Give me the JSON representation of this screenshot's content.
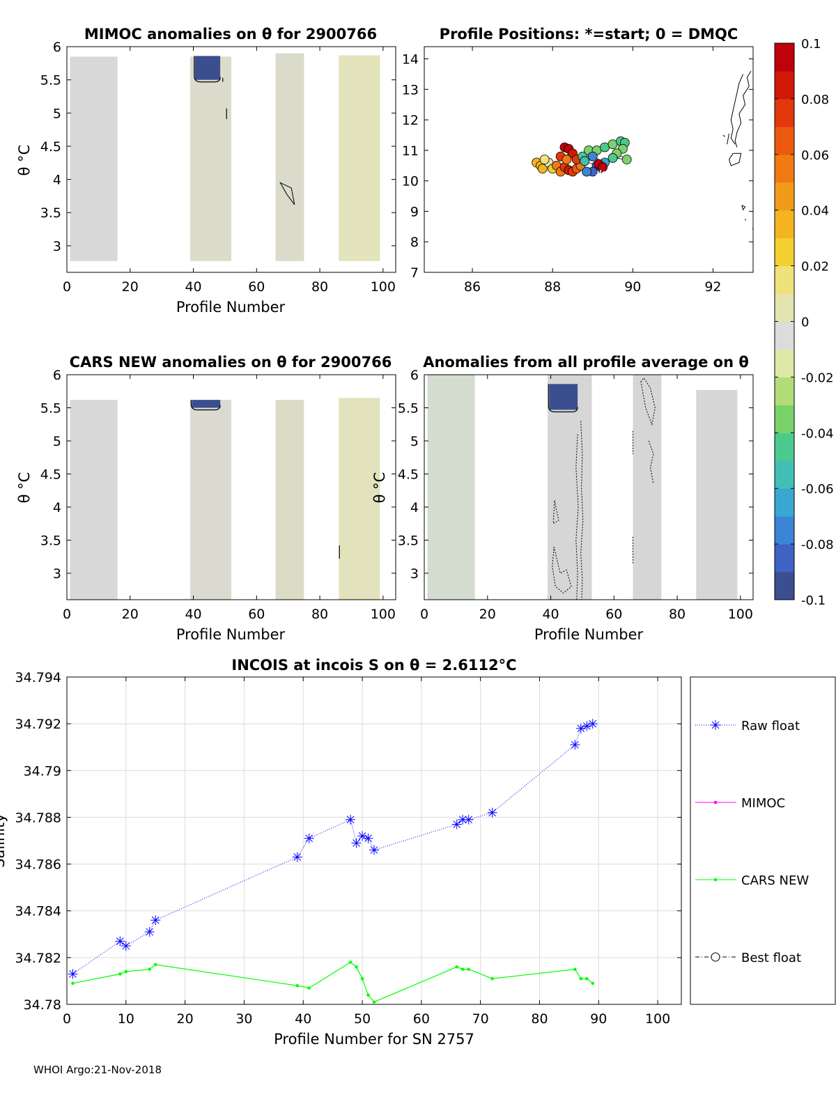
{
  "footer": "WHOI Argo:21-Nov-2018",
  "colorbar": {
    "tick_labels": [
      "0.1",
      "0.08",
      "0.06",
      "0.04",
      "0.02",
      "0",
      "-0.02",
      "-0.04",
      "-0.06",
      "-0.08",
      "-0.1"
    ],
    "range": [
      -0.1,
      0.1
    ],
    "colors": [
      "#3b4e8f",
      "#3f63c5",
      "#3c84d6",
      "#3aa6d2",
      "#41bfb4",
      "#4cc98c",
      "#7ad26a",
      "#b2dc78",
      "#dfe9a7",
      "#dcdcdc",
      "#e4e4b0",
      "#efe27a",
      "#f2d030",
      "#f4b420",
      "#f29a1a",
      "#f07a14",
      "#ec5a10",
      "#e2380c",
      "#d01808",
      "#c0000a"
    ]
  },
  "chart_data": [
    {
      "type": "heatmap",
      "title": "MIMOC anomalies on θ  for 2900766",
      "xlabel": "Profile Number",
      "ylabel": "θ °C",
      "xlim": [
        0,
        104
      ],
      "ylim": [
        2.6,
        6
      ],
      "xticks": [
        "0",
        "20",
        "40",
        "60",
        "80",
        "100"
      ],
      "yticks": [
        "3",
        "3.5",
        "4",
        "4.5",
        "5",
        "5.5",
        "6"
      ],
      "blocks": [
        {
          "x0": 1,
          "x1": 16,
          "top": 5.85,
          "bottom": 2.77,
          "color": "#d8d8d8"
        },
        {
          "x0": 39,
          "x1": 52,
          "top": 5.85,
          "bottom": 2.77,
          "color": "#dcdccc"
        },
        {
          "x0": 66,
          "x1": 75,
          "top": 5.9,
          "bottom": 2.77,
          "color": "#dadbca"
        },
        {
          "x0": 86,
          "x1": 99,
          "top": 5.87,
          "bottom": 2.77,
          "color": "#e3e3bc"
        }
      ],
      "patches": [
        {
          "x0": 40.5,
          "x1": 48.5,
          "top": 5.86,
          "bottom": 5.5,
          "value": -0.1
        }
      ]
    },
    {
      "type": "scatter",
      "title": "Profile Positions: *=start; 0 = DMQC",
      "xlim": [
        84.8,
        93
      ],
      "ylim": [
        7,
        14.4
      ],
      "xticks": [
        "86",
        "88",
        "90",
        "92"
      ],
      "yticks": [
        "7",
        "8",
        "9",
        "10",
        "11",
        "12",
        "13",
        "14"
      ],
      "points": [
        {
          "x": 87.6,
          "y": 10.6,
          "v": 0.03
        },
        {
          "x": 87.7,
          "y": 10.5,
          "v": 0.035
        },
        {
          "x": 87.75,
          "y": 10.4,
          "v": 0.03
        },
        {
          "x": 87.9,
          "y": 10.6,
          "v": 0.01
        },
        {
          "x": 87.8,
          "y": 10.7,
          "v": 0.015
        },
        {
          "x": 88.0,
          "y": 10.4,
          "v": 0.02
        },
        {
          "x": 88.1,
          "y": 10.5,
          "v": 0.05
        },
        {
          "x": 88.2,
          "y": 10.3,
          "v": 0.06
        },
        {
          "x": 88.3,
          "y": 10.45,
          "v": 0.07
        },
        {
          "x": 88.4,
          "y": 10.35,
          "v": 0.08
        },
        {
          "x": 88.5,
          "y": 10.3,
          "v": 0.07
        },
        {
          "x": 88.6,
          "y": 10.4,
          "v": 0.065
        },
        {
          "x": 88.7,
          "y": 10.5,
          "v": 0.06
        },
        {
          "x": 88.3,
          "y": 11.1,
          "v": 0.09
        },
        {
          "x": 88.4,
          "y": 11.05,
          "v": 0.1
        },
        {
          "x": 88.5,
          "y": 10.9,
          "v": 0.08
        },
        {
          "x": 88.2,
          "y": 10.8,
          "v": 0.07
        },
        {
          "x": 88.35,
          "y": 10.7,
          "v": 0.06
        },
        {
          "x": 88.6,
          "y": 10.7,
          "v": 0.075
        },
        {
          "x": 88.75,
          "y": 10.8,
          "v": -0.05
        },
        {
          "x": 88.9,
          "y": 11.0,
          "v": -0.04
        },
        {
          "x": 89.1,
          "y": 11.0,
          "v": -0.035
        },
        {
          "x": 89.3,
          "y": 11.1,
          "v": -0.045
        },
        {
          "x": 89.5,
          "y": 11.2,
          "v": -0.04
        },
        {
          "x": 89.7,
          "y": 11.3,
          "v": -0.05
        },
        {
          "x": 89.8,
          "y": 11.25,
          "v": -0.045
        },
        {
          "x": 89.75,
          "y": 11.05,
          "v": -0.04
        },
        {
          "x": 89.6,
          "y": 10.9,
          "v": -0.035
        },
        {
          "x": 89.85,
          "y": 10.7,
          "v": -0.04
        },
        {
          "x": 89.5,
          "y": 10.75,
          "v": -0.05
        },
        {
          "x": 89.3,
          "y": 10.6,
          "v": -0.07
        },
        {
          "x": 89.0,
          "y": 10.8,
          "v": -0.075
        },
        {
          "x": 88.8,
          "y": 10.65,
          "v": -0.06
        },
        {
          "x": 89.1,
          "y": 10.5,
          "v": -0.09
        },
        {
          "x": 89.2,
          "y": 10.4,
          "v": -0.1
        },
        {
          "x": 89.0,
          "y": 10.3,
          "v": -0.085
        },
        {
          "x": 89.15,
          "y": 10.55,
          "v": 0.09
        },
        {
          "x": 89.25,
          "y": 10.45,
          "v": 0.1
        },
        {
          "x": 88.85,
          "y": 10.3,
          "v": -0.08
        }
      ],
      "start": {
        "x": 89.2,
        "y": 10.2
      }
    },
    {
      "type": "heatmap",
      "title": "CARS NEW anomalies on θ for 2900766",
      "xlabel": "Profile Number",
      "ylabel": "θ °C",
      "xlim": [
        0,
        104
      ],
      "ylim": [
        2.6,
        6
      ],
      "xticks": [
        "0",
        "20",
        "40",
        "60",
        "80",
        "100"
      ],
      "yticks": [
        "3",
        "3.5",
        "4",
        "4.5",
        "5",
        "5.5",
        "6"
      ],
      "blocks": [
        {
          "x0": 1,
          "x1": 16,
          "top": 5.62,
          "bottom": 2.6,
          "color": "#d8d8d8"
        },
        {
          "x0": 39,
          "x1": 52,
          "top": 5.62,
          "bottom": 2.6,
          "color": "#dadad0"
        },
        {
          "x0": 66,
          "x1": 75,
          "top": 5.62,
          "bottom": 2.6,
          "color": "#dcdcc6"
        },
        {
          "x0": 86,
          "x1": 99,
          "top": 5.65,
          "bottom": 2.6,
          "color": "#e2e2bc"
        }
      ],
      "patches": [
        {
          "x0": 39.5,
          "x1": 48.5,
          "top": 5.62,
          "bottom": 5.5,
          "value": -0.1
        }
      ]
    },
    {
      "type": "heatmap",
      "title": "Anomalies from all profile average on θ",
      "xlabel": "Profile Number",
      "ylabel": "θ °C",
      "xlim": [
        0,
        104
      ],
      "ylim": [
        2.6,
        6
      ],
      "xticks": [
        "0",
        "20",
        "40",
        "60",
        "80",
        "100"
      ],
      "yticks": [
        "3",
        "3.5",
        "4",
        "4.5",
        "5",
        "5.5",
        "6"
      ],
      "blocks": [
        {
          "x0": 1,
          "x1": 16,
          "top": 6.0,
          "bottom": 2.6,
          "color": "#d4dcd0"
        },
        {
          "x0": 39,
          "x1": 53,
          "top": 6.0,
          "bottom": 2.6,
          "color": "#d6d6d6"
        },
        {
          "x0": 66,
          "x1": 75,
          "top": 6.0,
          "bottom": 2.6,
          "color": "#d6d6d6"
        },
        {
          "x0": 86,
          "x1": 99,
          "top": 5.77,
          "bottom": 2.6,
          "color": "#d6d6d6"
        }
      ],
      "patches": [
        {
          "x0": 39.5,
          "x1": 48.5,
          "top": 5.86,
          "bottom": 5.47,
          "value": -0.1
        }
      ]
    },
    {
      "type": "line",
      "title": "INCOIS at incois S on θ = 2.6112°C",
      "xlabel": "Profile Number for SN 2757",
      "ylabel": "Salinity",
      "xlim": [
        0,
        104
      ],
      "ylim": [
        34.78,
        34.794
      ],
      "xticks": [
        "0",
        "10",
        "20",
        "30",
        "40",
        "50",
        "60",
        "70",
        "80",
        "90",
        "100"
      ],
      "yticks": [
        "34.78",
        "34.782",
        "34.784",
        "34.786",
        "34.788",
        "34.79",
        "34.792",
        "34.794"
      ],
      "grid": true,
      "legend_position": "right",
      "series": [
        {
          "name": "Raw float",
          "color": "#0000ff",
          "x": [
            1,
            9,
            10,
            14,
            15,
            39,
            41,
            48,
            49,
            50,
            51,
            52,
            66,
            67,
            68,
            72,
            86,
            87,
            88,
            89
          ],
          "y": [
            34.7813,
            34.7827,
            34.7825,
            34.7831,
            34.7836,
            34.7863,
            34.7871,
            34.7879,
            34.7869,
            34.7872,
            34.7871,
            34.7866,
            34.7877,
            34.7879,
            34.7879,
            34.7882,
            34.7911,
            34.7918,
            34.7919,
            34.792
          ]
        },
        {
          "name": "MIMOC",
          "color": "#ff00ff",
          "x": [],
          "y": []
        },
        {
          "name": "CARS NEW",
          "color": "#00ff00",
          "x": [
            1,
            9,
            10,
            14,
            15,
            39,
            41,
            48,
            49,
            50,
            51,
            52,
            66,
            67,
            68,
            72,
            86,
            87,
            88,
            89
          ],
          "y": [
            34.7809,
            34.7813,
            34.7814,
            34.7815,
            34.7817,
            34.7808,
            34.7807,
            34.7818,
            34.7816,
            34.7811,
            34.7804,
            34.7801,
            34.7816,
            34.7815,
            34.7815,
            34.7811,
            34.7815,
            34.7811,
            34.7811,
            34.7809
          ]
        },
        {
          "name": "Best float",
          "color": "#000000",
          "x": [],
          "y": []
        }
      ]
    }
  ]
}
